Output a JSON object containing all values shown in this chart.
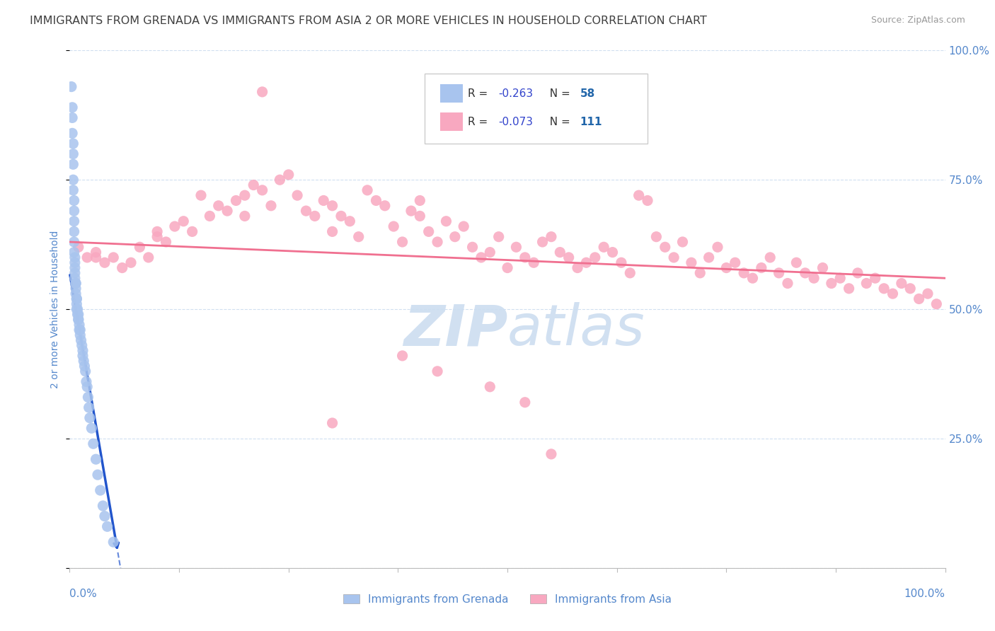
{
  "title": "IMMIGRANTS FROM GRENADA VS IMMIGRANTS FROM ASIA 2 OR MORE VEHICLES IN HOUSEHOLD CORRELATION CHART",
  "source": "Source: ZipAtlas.com",
  "ylabel": "2 or more Vehicles in Household",
  "legend_grenada": "Immigrants from Grenada",
  "legend_asia": "Immigrants from Asia",
  "R_grenada": -0.263,
  "N_grenada": 58,
  "R_asia": -0.073,
  "N_asia": 111,
  "background_color": "#ffffff",
  "grid_color": "#d0dff0",
  "scatter_grenada_color": "#a8c4ee",
  "scatter_asia_color": "#f8a8c0",
  "line_grenada_color": "#2255cc",
  "line_asia_color": "#f07090",
  "watermark_color": "#ccddf0",
  "title_color": "#404040",
  "axis_label_color": "#5588cc",
  "legend_R_color": "#3344cc",
  "legend_N_color": "#2266aa",
  "xlim": [
    0,
    1
  ],
  "ylim": [
    0,
    1
  ],
  "grenada_x": [
    0.002,
    0.003,
    0.003,
    0.003,
    0.004,
    0.004,
    0.004,
    0.004,
    0.004,
    0.005,
    0.005,
    0.005,
    0.005,
    0.005,
    0.005,
    0.006,
    0.006,
    0.006,
    0.006,
    0.006,
    0.007,
    0.007,
    0.007,
    0.007,
    0.008,
    0.008,
    0.008,
    0.008,
    0.009,
    0.009,
    0.01,
    0.01,
    0.01,
    0.011,
    0.011,
    0.012,
    0.012,
    0.013,
    0.014,
    0.015,
    0.015,
    0.016,
    0.017,
    0.018,
    0.019,
    0.02,
    0.021,
    0.022,
    0.023,
    0.025,
    0.027,
    0.03,
    0.032,
    0.035,
    0.038,
    0.04,
    0.043,
    0.05
  ],
  "grenada_y": [
    0.93,
    0.89,
    0.87,
    0.84,
    0.82,
    0.8,
    0.78,
    0.75,
    0.73,
    0.71,
    0.69,
    0.67,
    0.65,
    0.63,
    0.61,
    0.6,
    0.59,
    0.58,
    0.57,
    0.56,
    0.55,
    0.55,
    0.54,
    0.53,
    0.52,
    0.52,
    0.51,
    0.5,
    0.5,
    0.49,
    0.49,
    0.48,
    0.48,
    0.47,
    0.46,
    0.46,
    0.45,
    0.44,
    0.43,
    0.42,
    0.41,
    0.4,
    0.39,
    0.38,
    0.36,
    0.35,
    0.33,
    0.31,
    0.29,
    0.27,
    0.24,
    0.21,
    0.18,
    0.15,
    0.12,
    0.1,
    0.08,
    0.05
  ],
  "asia_x": [
    0.01,
    0.02,
    0.03,
    0.03,
    0.04,
    0.05,
    0.06,
    0.07,
    0.08,
    0.09,
    0.1,
    0.1,
    0.11,
    0.12,
    0.13,
    0.14,
    0.15,
    0.16,
    0.17,
    0.18,
    0.19,
    0.2,
    0.2,
    0.21,
    0.22,
    0.23,
    0.24,
    0.25,
    0.26,
    0.27,
    0.28,
    0.29,
    0.3,
    0.3,
    0.31,
    0.32,
    0.33,
    0.34,
    0.35,
    0.36,
    0.37,
    0.38,
    0.39,
    0.4,
    0.4,
    0.41,
    0.42,
    0.43,
    0.44,
    0.45,
    0.46,
    0.47,
    0.48,
    0.49,
    0.5,
    0.51,
    0.52,
    0.53,
    0.54,
    0.55,
    0.56,
    0.57,
    0.58,
    0.59,
    0.6,
    0.61,
    0.62,
    0.63,
    0.64,
    0.65,
    0.66,
    0.67,
    0.68,
    0.69,
    0.7,
    0.71,
    0.72,
    0.73,
    0.74,
    0.75,
    0.76,
    0.77,
    0.78,
    0.79,
    0.8,
    0.81,
    0.82,
    0.83,
    0.84,
    0.85,
    0.86,
    0.87,
    0.88,
    0.89,
    0.9,
    0.91,
    0.92,
    0.93,
    0.94,
    0.95,
    0.96,
    0.97,
    0.98,
    0.99,
    0.38,
    0.42,
    0.48,
    0.52,
    0.3,
    0.55,
    0.22
  ],
  "asia_y": [
    0.62,
    0.6,
    0.6,
    0.61,
    0.59,
    0.6,
    0.58,
    0.59,
    0.62,
    0.6,
    0.65,
    0.64,
    0.63,
    0.66,
    0.67,
    0.65,
    0.72,
    0.68,
    0.7,
    0.69,
    0.71,
    0.72,
    0.68,
    0.74,
    0.73,
    0.7,
    0.75,
    0.76,
    0.72,
    0.69,
    0.68,
    0.71,
    0.65,
    0.7,
    0.68,
    0.67,
    0.64,
    0.73,
    0.71,
    0.7,
    0.66,
    0.63,
    0.69,
    0.71,
    0.68,
    0.65,
    0.63,
    0.67,
    0.64,
    0.66,
    0.62,
    0.6,
    0.61,
    0.64,
    0.58,
    0.62,
    0.6,
    0.59,
    0.63,
    0.64,
    0.61,
    0.6,
    0.58,
    0.59,
    0.6,
    0.62,
    0.61,
    0.59,
    0.57,
    0.72,
    0.71,
    0.64,
    0.62,
    0.6,
    0.63,
    0.59,
    0.57,
    0.6,
    0.62,
    0.58,
    0.59,
    0.57,
    0.56,
    0.58,
    0.6,
    0.57,
    0.55,
    0.59,
    0.57,
    0.56,
    0.58,
    0.55,
    0.56,
    0.54,
    0.57,
    0.55,
    0.56,
    0.54,
    0.53,
    0.55,
    0.54,
    0.52,
    0.53,
    0.51,
    0.41,
    0.38,
    0.35,
    0.32,
    0.28,
    0.22,
    0.92
  ],
  "line_grenada_x0": 0.0,
  "line_grenada_x1": 0.055,
  "line_grenada_y0": 0.57,
  "line_grenada_y1": 0.03,
  "line_grenada_dash_x0": 0.055,
  "line_grenada_dash_x1": 0.18,
  "line_asia_x0": 0.0,
  "line_asia_x1": 1.0,
  "line_asia_y0": 0.63,
  "line_asia_y1": 0.56
}
